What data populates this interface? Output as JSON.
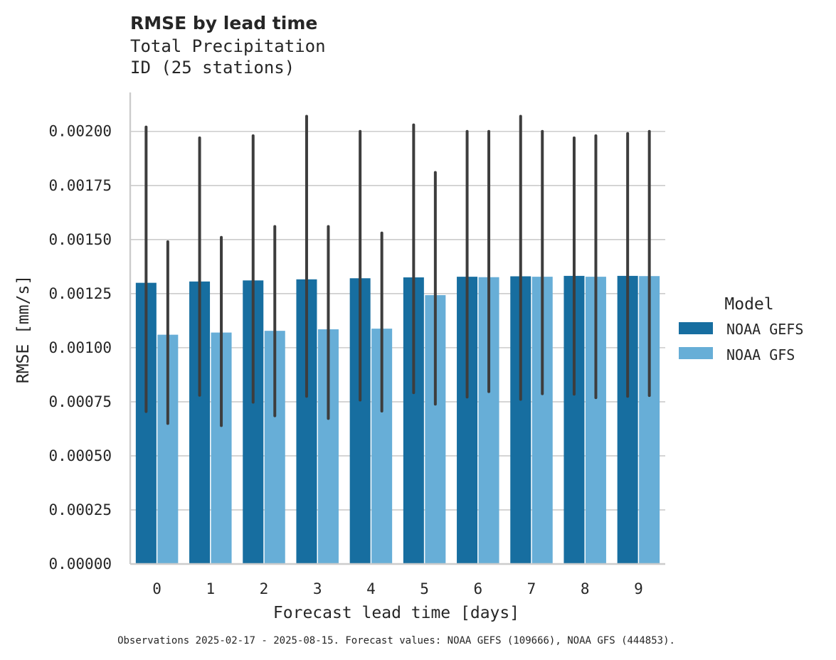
{
  "chart_data": {
    "type": "bar",
    "title": "RMSE by lead time",
    "subtitle_lines": [
      "Total Precipitation",
      "ID (25 stations)"
    ],
    "xlabel": "Forecast lead time [days]",
    "ylabel": "RMSE [mm/s]",
    "categories": [
      "0",
      "1",
      "2",
      "3",
      "4",
      "5",
      "6",
      "7",
      "8",
      "9"
    ],
    "ylim": [
      0,
      0.00218
    ],
    "yticks": [
      0.0,
      0.00025,
      0.0005,
      0.00075,
      0.001,
      0.00125,
      0.0015,
      0.00175,
      0.002
    ],
    "ytick_labels": [
      "0.00000",
      "0.00025",
      "0.00050",
      "0.00075",
      "0.00100",
      "0.00125",
      "0.00150",
      "0.00175",
      "0.00200"
    ],
    "grid": true,
    "legend": {
      "title": "Model",
      "placement": "right"
    },
    "series": [
      {
        "name": "NOAA GEFS",
        "color": "#176ea0",
        "values": [
          0.0013,
          0.001306,
          0.001311,
          0.001316,
          0.001321,
          0.001325,
          0.001328,
          0.00133,
          0.001332,
          0.001332
        ],
        "error_low": [
          0.000705,
          0.00078,
          0.000748,
          0.000775,
          0.000758,
          0.000792,
          0.000772,
          0.000761,
          0.000785,
          0.000775
        ],
        "error_high": [
          0.00202,
          0.00197,
          0.00198,
          0.00207,
          0.002,
          0.00203,
          0.002,
          0.00207,
          0.00197,
          0.00199
        ]
      },
      {
        "name": "NOAA GFS",
        "color": "#67aed7",
        "values": [
          0.00106,
          0.00107,
          0.001078,
          0.001085,
          0.001088,
          0.001243,
          0.001326,
          0.001328,
          0.001328,
          0.001331
        ],
        "error_low": [
          0.00065,
          0.00064,
          0.000685,
          0.000673,
          0.000707,
          0.000739,
          0.000797,
          0.000787,
          0.000769,
          0.000779
        ],
        "error_high": [
          0.00149,
          0.00151,
          0.00156,
          0.00156,
          0.00153,
          0.00181,
          0.002,
          0.002,
          0.00198,
          0.002
        ]
      }
    ],
    "footnote": "Observations 2025-02-17 - 2025-08-15. Forecast values: NOAA GEFS (109666), NOAA GFS (444853)."
  }
}
